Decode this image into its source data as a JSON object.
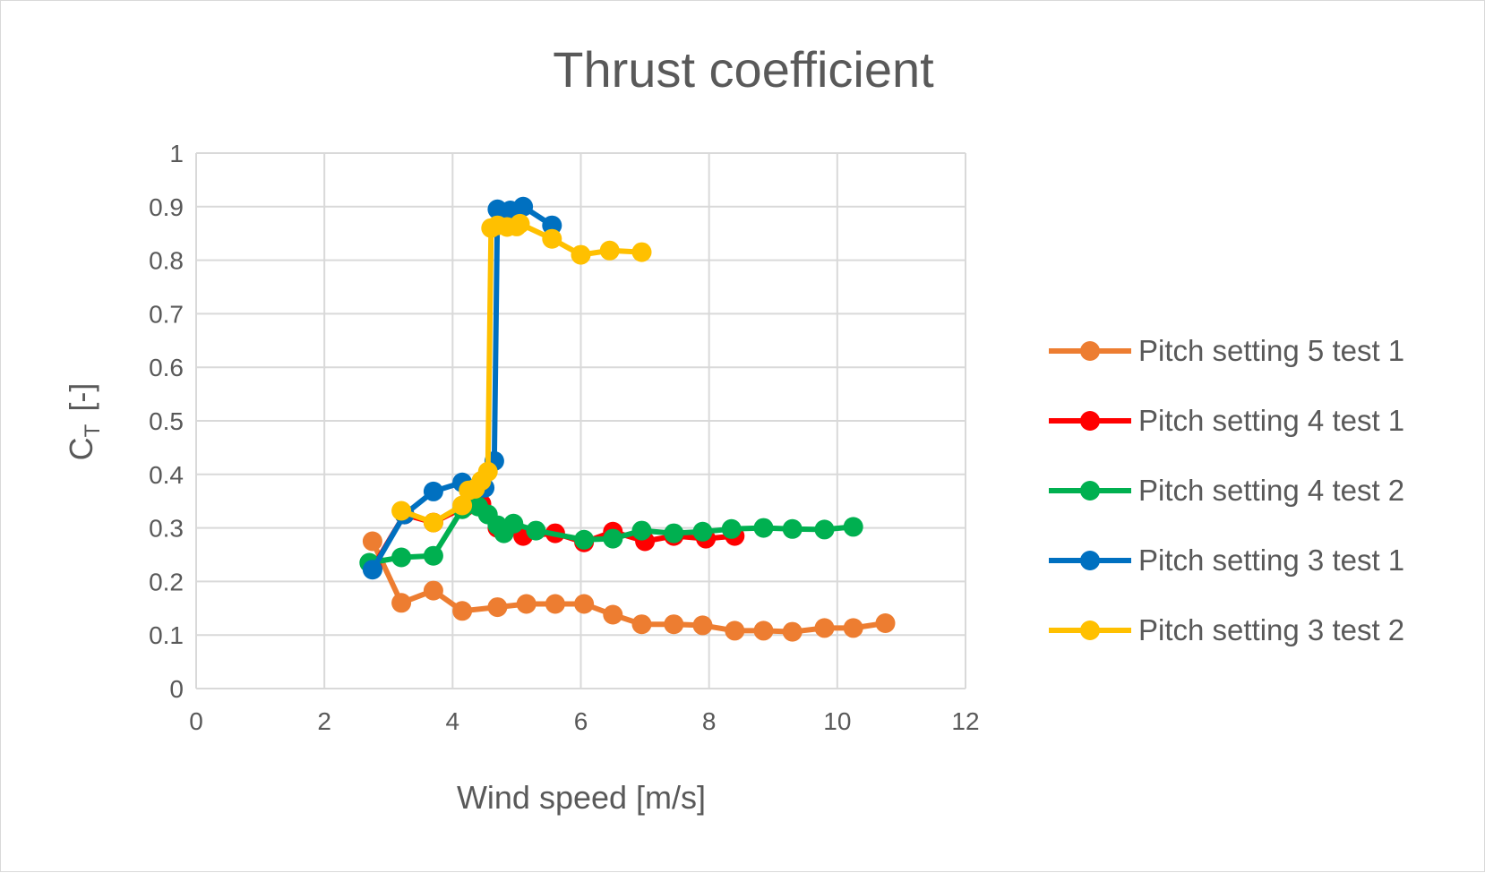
{
  "chart_data": {
    "type": "line",
    "title": "Thrust coefficient",
    "xlabel": "Wind speed [m/s]",
    "ylabel_main": "C",
    "ylabel_sub": "T",
    "ylabel_unit": "[-]",
    "xlim": [
      0,
      12
    ],
    "ylim": [
      0,
      1
    ],
    "x_ticks": [
      "0",
      "2",
      "4",
      "6",
      "8",
      "10",
      "12"
    ],
    "y_ticks": [
      "0",
      "0.1",
      "0.2",
      "0.3",
      "0.4",
      "0.5",
      "0.6",
      "0.7",
      "0.8",
      "0.9",
      "1"
    ],
    "grid": true,
    "legend_position": "right",
    "series": [
      {
        "name": "Pitch setting 5 test 1",
        "color": "#ED7D31",
        "points": [
          [
            2.75,
            0.275
          ],
          [
            3.2,
            0.16
          ],
          [
            3.7,
            0.183
          ],
          [
            4.15,
            0.145
          ],
          [
            4.7,
            0.152
          ],
          [
            5.15,
            0.158
          ],
          [
            5.6,
            0.158
          ],
          [
            6.05,
            0.158
          ],
          [
            6.5,
            0.138
          ],
          [
            6.95,
            0.12
          ],
          [
            7.45,
            0.12
          ],
          [
            7.9,
            0.118
          ],
          [
            8.4,
            0.108
          ],
          [
            8.85,
            0.108
          ],
          [
            9.3,
            0.106
          ],
          [
            9.8,
            0.113
          ],
          [
            10.25,
            0.113
          ],
          [
            10.75,
            0.122
          ]
        ]
      },
      {
        "name": "Pitch setting 4 test 1",
        "color": "#FF0000",
        "points": [
          [
            2.75,
            0.225
          ],
          [
            3.25,
            0.325
          ],
          [
            3.7,
            0.31
          ],
          [
            4.2,
            0.34
          ],
          [
            4.45,
            0.345
          ],
          [
            4.7,
            0.3
          ],
          [
            5.1,
            0.285
          ],
          [
            5.6,
            0.29
          ],
          [
            6.05,
            0.273
          ],
          [
            6.5,
            0.293
          ],
          [
            7.0,
            0.275
          ],
          [
            7.45,
            0.285
          ],
          [
            7.95,
            0.28
          ],
          [
            8.4,
            0.285
          ]
        ]
      },
      {
        "name": "Pitch setting 4 test 2",
        "color": "#00B050",
        "points": [
          [
            2.7,
            0.235
          ],
          [
            3.2,
            0.245
          ],
          [
            3.7,
            0.248
          ],
          [
            4.15,
            0.335
          ],
          [
            4.4,
            0.34
          ],
          [
            4.55,
            0.325
          ],
          [
            4.7,
            0.305
          ],
          [
            4.8,
            0.29
          ],
          [
            4.95,
            0.308
          ],
          [
            5.3,
            0.295
          ],
          [
            6.05,
            0.278
          ],
          [
            6.5,
            0.28
          ],
          [
            6.95,
            0.295
          ],
          [
            7.45,
            0.29
          ],
          [
            7.9,
            0.293
          ],
          [
            8.35,
            0.298
          ],
          [
            8.85,
            0.3
          ],
          [
            9.3,
            0.298
          ],
          [
            9.8,
            0.297
          ],
          [
            10.25,
            0.302
          ]
        ]
      },
      {
        "name": "Pitch setting 3 test 1",
        "color": "#0070C0",
        "points": [
          [
            2.75,
            0.222
          ],
          [
            3.25,
            0.325
          ],
          [
            3.7,
            0.368
          ],
          [
            4.15,
            0.385
          ],
          [
            4.5,
            0.375
          ],
          [
            4.65,
            0.425
          ],
          [
            4.7,
            0.895
          ],
          [
            4.9,
            0.893
          ],
          [
            5.1,
            0.9
          ],
          [
            5.55,
            0.865
          ]
        ]
      },
      {
        "name": "Pitch setting 3 test 2",
        "color": "#FFC000",
        "points": [
          [
            3.2,
            0.332
          ],
          [
            3.7,
            0.31
          ],
          [
            4.15,
            0.342
          ],
          [
            4.25,
            0.37
          ],
          [
            4.35,
            0.373
          ],
          [
            4.45,
            0.388
          ],
          [
            4.55,
            0.405
          ],
          [
            4.6,
            0.86
          ],
          [
            4.7,
            0.865
          ],
          [
            4.85,
            0.862
          ],
          [
            5.0,
            0.863
          ],
          [
            5.05,
            0.868
          ],
          [
            5.55,
            0.84
          ],
          [
            6.0,
            0.81
          ],
          [
            6.45,
            0.818
          ],
          [
            6.95,
            0.815
          ]
        ]
      }
    ]
  }
}
